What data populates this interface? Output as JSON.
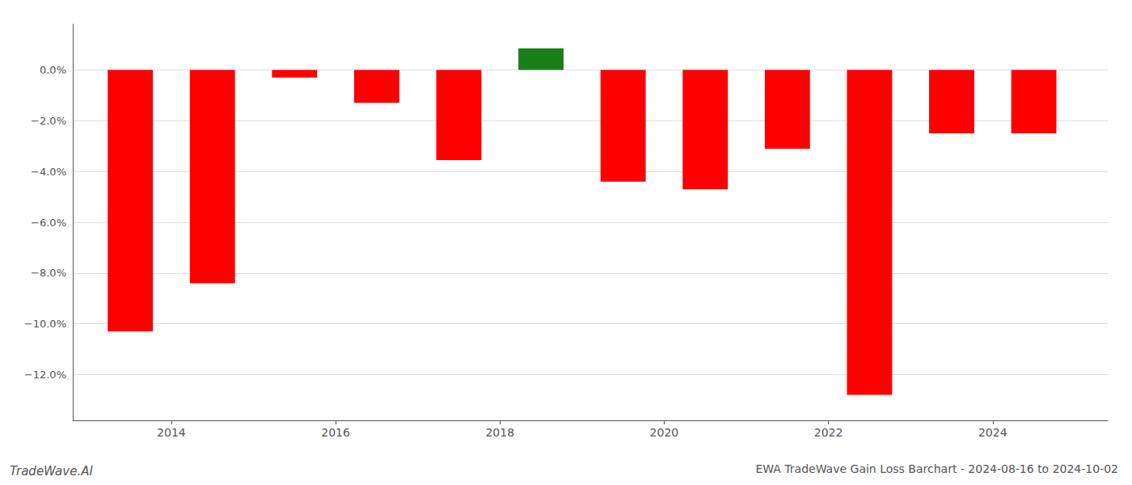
{
  "chart_data": {
    "type": "bar",
    "title": "EWA TradeWave Gain Loss Barchart - 2024-08-16 to 2024-10-02",
    "annotations": [
      "TradeWave.AI"
    ],
    "x": [
      2013.5,
      2014.5,
      2015.5,
      2016.5,
      2017.5,
      2018.5,
      2019.5,
      2020.5,
      2021.5,
      2022.5,
      2023.5,
      2024.5
    ],
    "values": [
      -10.3,
      -8.4,
      -0.3,
      -1.3,
      -3.55,
      0.85,
      -4.4,
      -4.7,
      -3.1,
      -12.8,
      -2.5,
      -2.5
    ],
    "colors": [
      "#ff0000",
      "#ff0000",
      "#ff0000",
      "#ff0000",
      "#ff0000",
      "#1a7f1a",
      "#ff0000",
      "#ff0000",
      "#ff0000",
      "#ff0000",
      "#ff0000",
      "#ff0000"
    ],
    "xlim": [
      2012.8,
      2025.4
    ],
    "xticks": [
      2014,
      2016,
      2018,
      2020,
      2022,
      2024
    ],
    "ylim": [
      -13.8,
      1.8
    ],
    "yticks": [
      {
        "value": 0.0,
        "label": "0.0%"
      },
      {
        "value": -2.0,
        "label": "−2.0%"
      },
      {
        "value": -4.0,
        "label": "−4.0%"
      },
      {
        "value": -6.0,
        "label": "−6.0%"
      },
      {
        "value": -8.0,
        "label": "−8.0%"
      },
      {
        "value": -10.0,
        "label": "−10.0%"
      },
      {
        "value": -12.0,
        "label": "−12.0%"
      }
    ],
    "grid": true
  }
}
